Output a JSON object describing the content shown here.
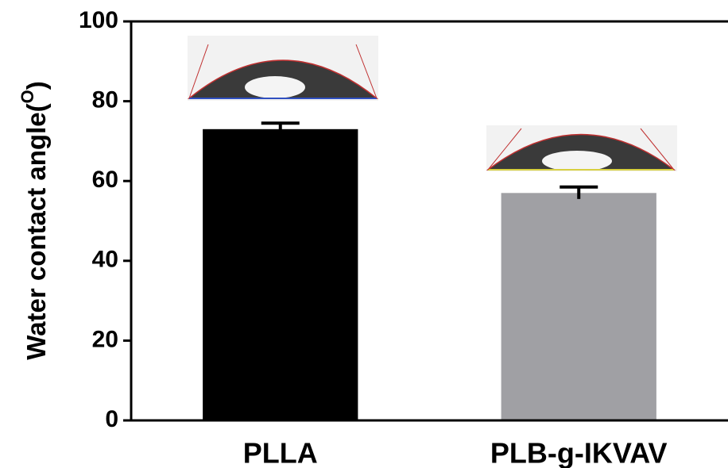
{
  "chart_data": {
    "type": "bar",
    "ylabel": [
      "Water contact angle(",
      "O",
      ")"
    ],
    "categories": [
      "PLLA",
      "PLB-g-IKVAV"
    ],
    "values": [
      73,
      57
    ],
    "errors": [
      1.5,
      1.5
    ],
    "colors": [
      "#000000",
      "#a0a0a4"
    ],
    "ylim": [
      0,
      100
    ],
    "yticks": [
      0,
      20,
      40,
      60,
      80,
      100
    ],
    "grid": false
  }
}
